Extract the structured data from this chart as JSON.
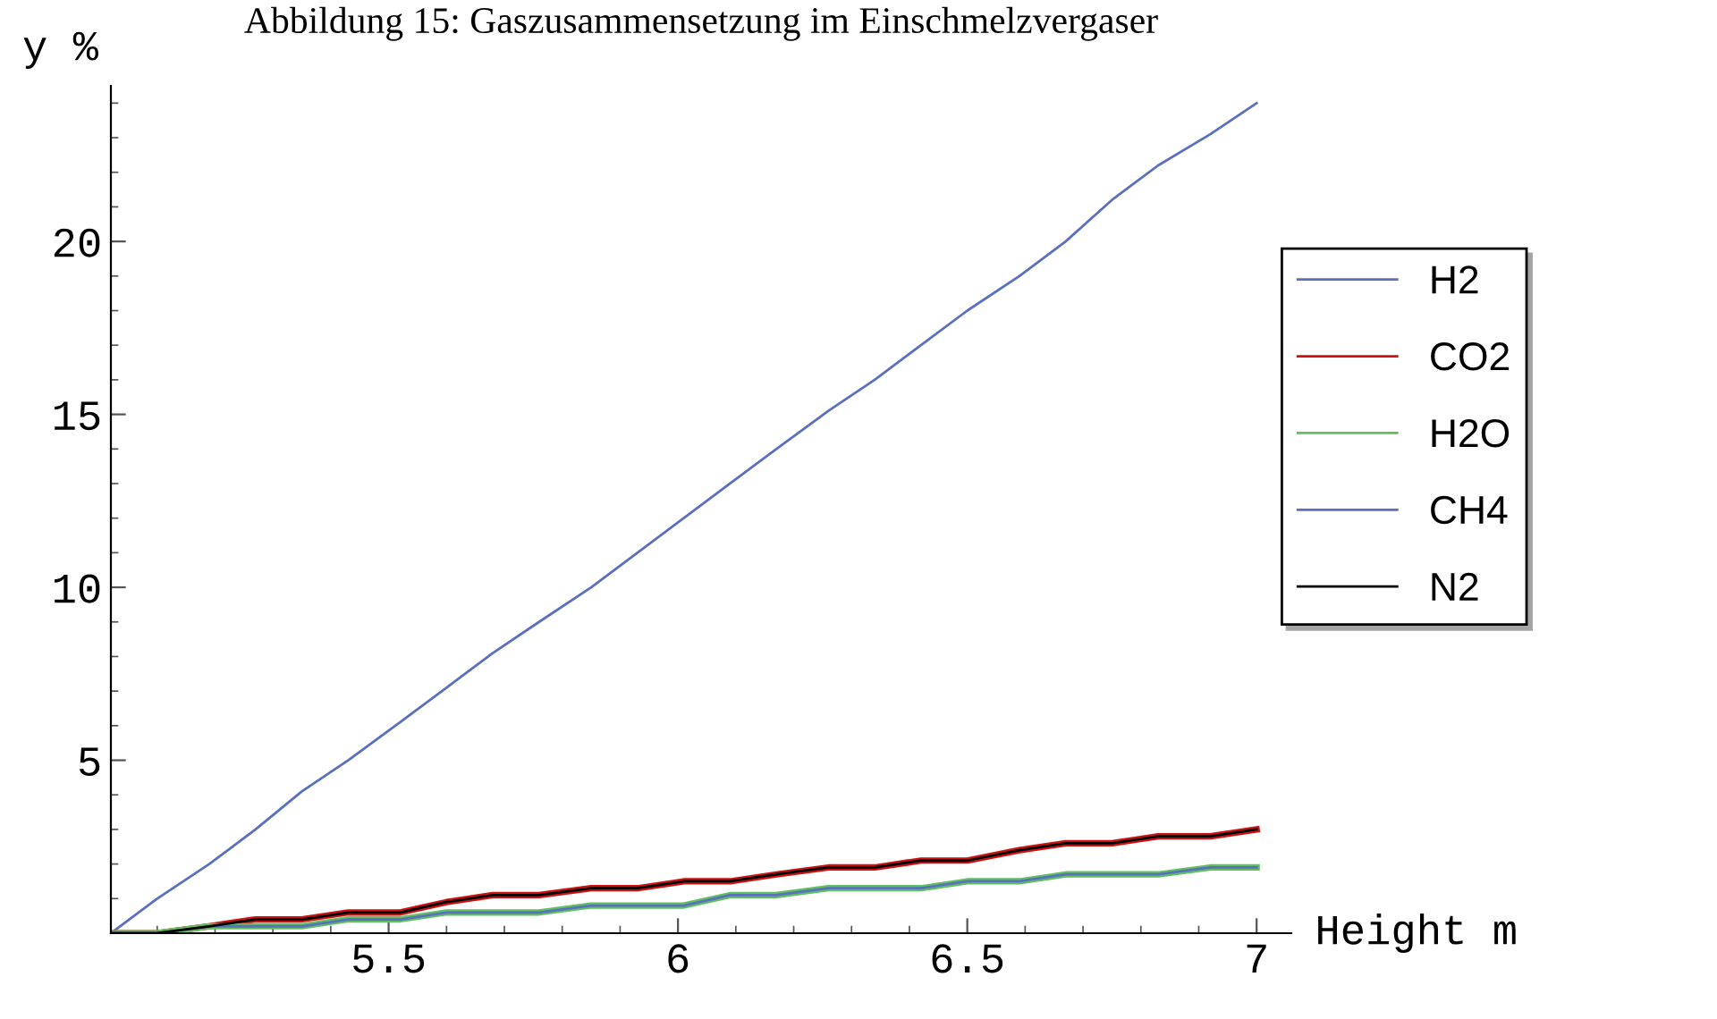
{
  "chart_data": {
    "type": "line",
    "title": "Abbildung 15: Gaszusammensetzung im Einschmelzvergaser",
    "xlabel": "Height m",
    "ylabel": "y %",
    "x": [
      5.02,
      5.1,
      5.19,
      5.27,
      5.35,
      5.43,
      5.52,
      5.6,
      5.68,
      5.76,
      5.85,
      5.93,
      6.01,
      6.09,
      6.17,
      6.26,
      6.34,
      6.42,
      6.5,
      6.59,
      6.67,
      6.75,
      6.83,
      6.92,
      7.0
    ],
    "series": [
      {
        "name": "H2",
        "color": "#5a6fc0",
        "values": [
          0,
          1,
          2,
          3,
          4.1,
          5,
          6.1,
          7.1,
          8.1,
          9,
          10,
          11,
          12,
          13,
          14,
          15.1,
          16,
          17,
          18,
          19,
          20,
          21.2,
          22.2,
          23.1,
          24
        ]
      },
      {
        "name": "CO2",
        "color": "#d01010",
        "values": [
          0,
          0,
          0.2,
          0.4,
          0.4,
          0.6,
          0.6,
          0.9,
          1.1,
          1.1,
          1.3,
          1.3,
          1.5,
          1.5,
          1.7,
          1.9,
          1.9,
          2.1,
          2.1,
          2.4,
          2.6,
          2.6,
          2.8,
          2.8,
          3.0
        ]
      },
      {
        "name": "H2O",
        "color": "#60c060",
        "values": [
          0,
          0,
          0.2,
          0.2,
          0.2,
          0.4,
          0.4,
          0.6,
          0.6,
          0.6,
          0.8,
          0.8,
          0.8,
          1.1,
          1.1,
          1.3,
          1.3,
          1.3,
          1.5,
          1.5,
          1.7,
          1.7,
          1.7,
          1.9,
          1.9
        ]
      },
      {
        "name": "CH4",
        "color": "#5a6fc0",
        "values": [
          0,
          0,
          0.2,
          0.2,
          0.2,
          0.4,
          0.4,
          0.6,
          0.6,
          0.6,
          0.8,
          0.8,
          0.8,
          1.1,
          1.1,
          1.3,
          1.3,
          1.3,
          1.5,
          1.5,
          1.7,
          1.7,
          1.7,
          1.9,
          1.9
        ]
      },
      {
        "name": "N2",
        "color": "#000000",
        "values": [
          0,
          0,
          0.2,
          0.4,
          0.4,
          0.6,
          0.6,
          0.9,
          1.1,
          1.1,
          1.3,
          1.3,
          1.5,
          1.5,
          1.7,
          1.9,
          1.9,
          2.1,
          2.1,
          2.4,
          2.6,
          2.6,
          2.8,
          2.8,
          3.0
        ]
      }
    ],
    "xlim": [
      5.02,
      7.06
    ],
    "ylim": [
      0,
      24.5
    ],
    "xticks": [
      5.5,
      6,
      6.5,
      7
    ],
    "yticks": [
      5,
      10,
      15,
      20
    ],
    "grid": false,
    "legend": "right",
    "marker": "none",
    "line_style": "solid"
  }
}
